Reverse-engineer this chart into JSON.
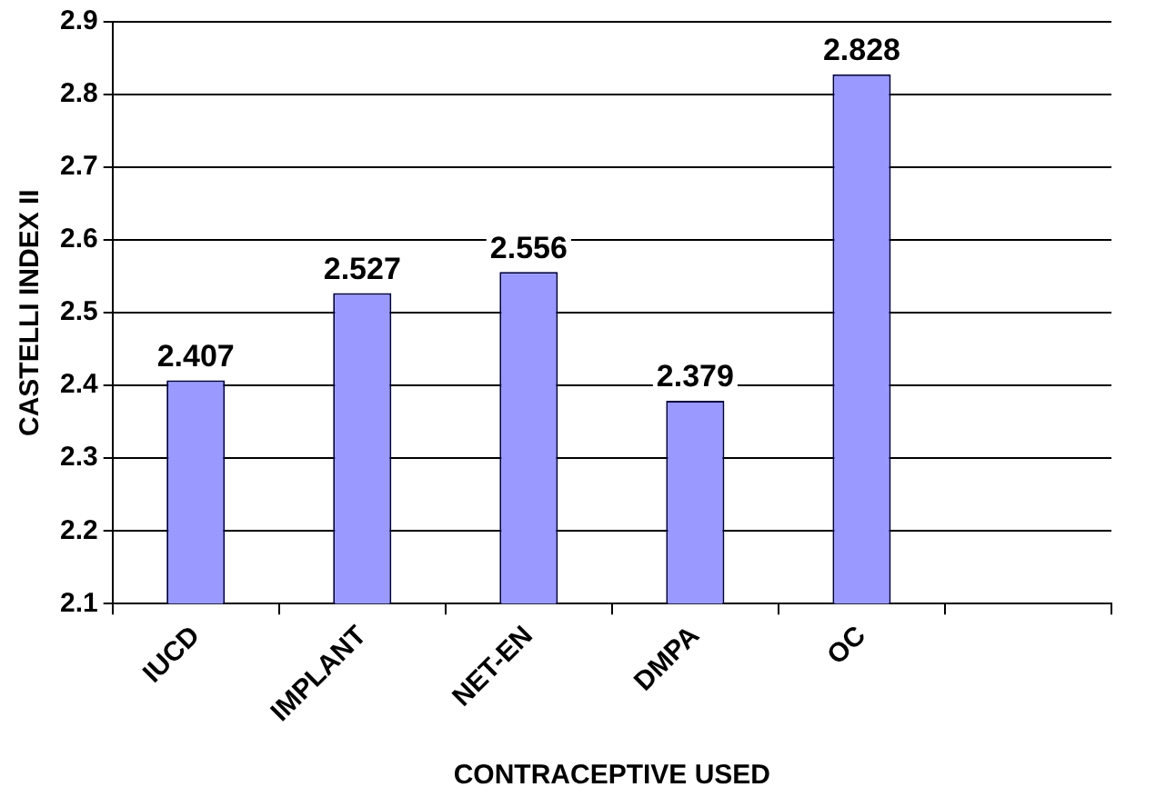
{
  "chart_data": {
    "type": "bar",
    "xlabel": "CONTRACEPTIVE USED",
    "ylabel": "CASTELLI INDEX II",
    "categories": [
      "IUCD",
      "IMPLANT",
      "NET-EN",
      "DMPA",
      "OC",
      null
    ],
    "values": [
      2.407,
      2.527,
      2.556,
      2.379,
      2.828,
      null
    ],
    "color": "#9999ff",
    "ylim": [
      2.1,
      2.9
    ],
    "yticks": [
      2.1,
      2.2,
      2.3,
      2.4,
      2.5,
      2.6,
      2.7,
      2.8,
      2.9
    ],
    "grid": "y",
    "data_labels": true,
    "legend": false
  }
}
